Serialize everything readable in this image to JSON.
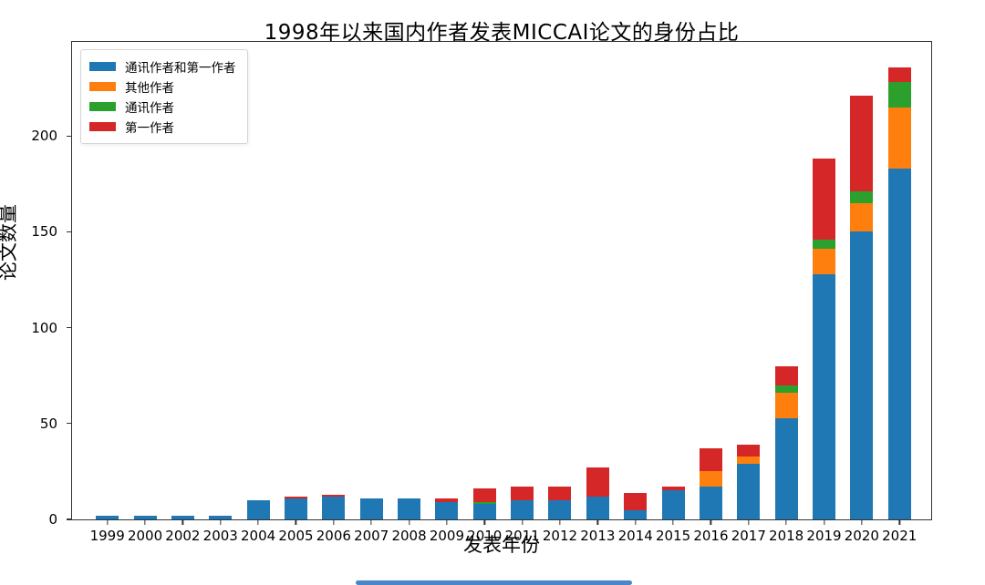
{
  "chart_data": {
    "type": "bar",
    "stacked": true,
    "title": "1998年以来国内作者发表MICCAI论文的身份占比",
    "xlabel": "发表年份",
    "ylabel": "论文数量",
    "categories": [
      "1999",
      "2000",
      "2002",
      "2003",
      "2004",
      "2005",
      "2006",
      "2007",
      "2008",
      "2009",
      "2010",
      "2011",
      "2012",
      "2013",
      "2014",
      "2015",
      "2016",
      "2017",
      "2018",
      "2019",
      "2020",
      "2021"
    ],
    "series": [
      {
        "name": "通讯作者和第一作者",
        "color": "#1f77b4",
        "values": [
          2,
          2,
          2,
          2,
          10,
          11,
          12,
          11,
          11,
          9,
          8,
          10,
          10,
          12,
          5,
          15,
          17,
          29,
          53,
          128,
          150,
          183
        ]
      },
      {
        "name": "其他作者",
        "color": "#ff7f0e",
        "values": [
          0,
          0,
          0,
          0,
          0,
          0,
          0,
          0,
          0,
          0,
          0,
          0,
          0,
          0,
          0,
          0,
          8,
          4,
          13,
          13,
          15,
          32
        ]
      },
      {
        "name": "通讯作者",
        "color": "#2ca02c",
        "values": [
          0,
          0,
          0,
          0,
          0,
          0,
          0,
          0,
          0,
          0,
          1,
          0,
          0,
          0,
          0,
          0,
          0,
          0,
          4,
          5,
          6,
          13
        ]
      },
      {
        "name": "第一作者",
        "color": "#d62728",
        "values": [
          0,
          0,
          0,
          0,
          0,
          1,
          1,
          0,
          0,
          2,
          7,
          7,
          7,
          15,
          9,
          2,
          12,
          6,
          10,
          42,
          50,
          8
        ]
      }
    ],
    "totals": [
      2,
      2,
      2,
      2,
      10,
      12,
      13,
      11,
      11,
      11,
      16,
      17,
      17,
      27,
      14,
      17,
      37,
      39,
      80,
      188,
      221,
      236
    ],
    "ylim": [
      0,
      250
    ],
    "yticks": [
      0,
      50,
      100,
      150,
      200
    ],
    "legend_position": "upper left",
    "grid": false,
    "background": "#ffffff",
    "spine_color": "#333333"
  },
  "misc": {
    "progress_bar_color": "#4a86c8"
  }
}
